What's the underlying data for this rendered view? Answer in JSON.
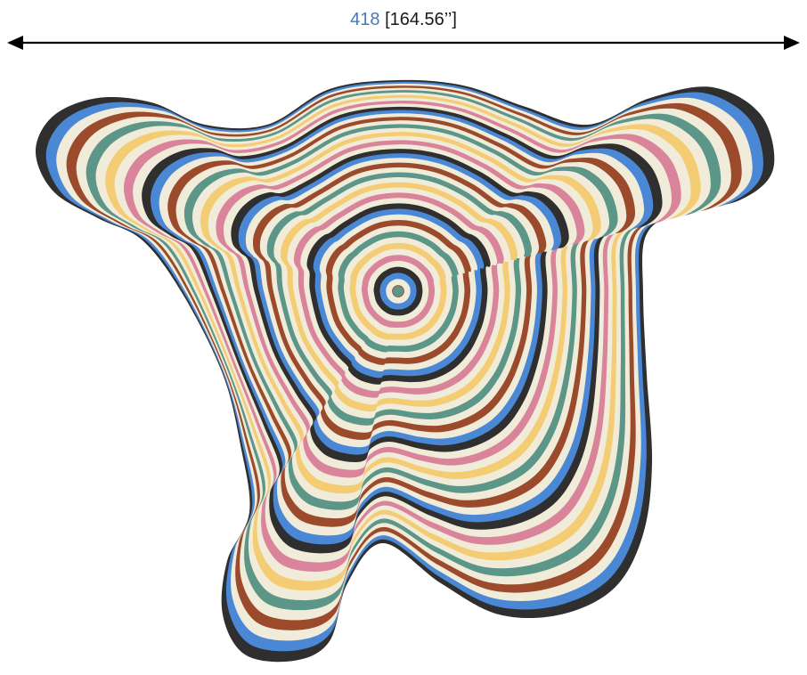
{
  "dimension": {
    "value_cm": "418",
    "value_in": "[164.56’’]",
    "metric_color": "#4a7ab5",
    "text_color": "#1a1a1a"
  },
  "rug": {
    "palette": [
      "#2f2f2f",
      "#4a88d6",
      "#f1ecd9",
      "#9c4a2c",
      "#f1ecd9",
      "#5c9688",
      "#f1ecd9",
      "#f3cc73",
      "#f1ecd9",
      "#d9849a",
      "#f1ecd9"
    ],
    "center_color": "#5c9688"
  }
}
